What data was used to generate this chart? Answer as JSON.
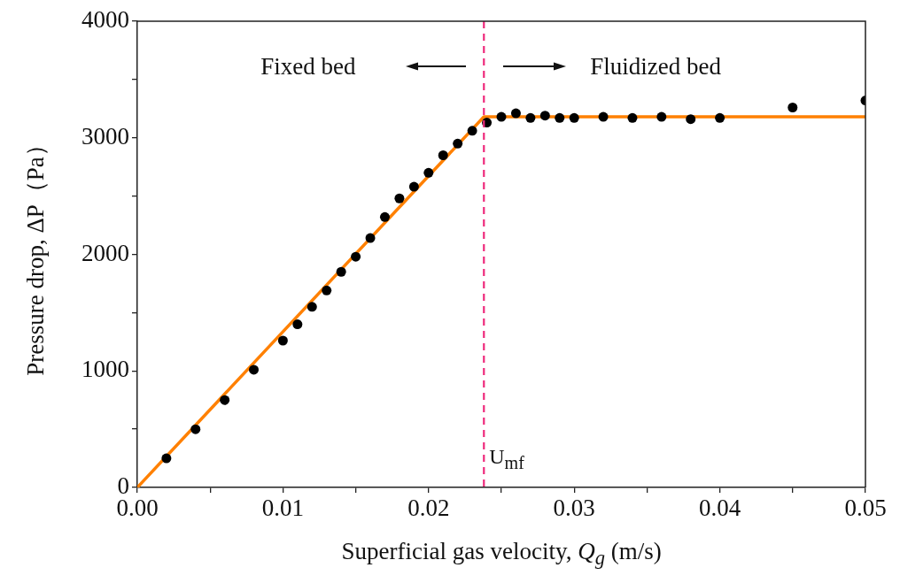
{
  "chart_data": {
    "type": "scatter",
    "xlabel": "Superficial gas velocity, Q$_{g}$ (m/s)",
    "ylabel": "Pressure drop, ΔP（Pa）",
    "xlim": [
      0,
      0.05
    ],
    "ylim": [
      0,
      4000
    ],
    "xticks": [
      {
        "value": 0,
        "label": "0.00"
      },
      {
        "value": 0.005,
        "label": null
      },
      {
        "value": 0.01,
        "label": "0.01"
      },
      {
        "value": 0.015,
        "label": null
      },
      {
        "value": 0.02,
        "label": "0.02"
      },
      {
        "value": 0.025,
        "label": null
      },
      {
        "value": 0.03,
        "label": "0.03"
      },
      {
        "value": 0.035,
        "label": null
      },
      {
        "value": 0.04,
        "label": "0.04"
      },
      {
        "value": 0.045,
        "label": null
      },
      {
        "value": 0.05,
        "label": "0.05"
      }
    ],
    "yticks": [
      0,
      {
        "value": 500,
        "label": null
      },
      1000,
      {
        "value": 1500,
        "label": null
      },
      2000,
      {
        "value": 2500,
        "label": null
      },
      3000,
      {
        "value": 3500,
        "label": null
      },
      4000
    ],
    "grid": false,
    "legend": false,
    "series": [
      {
        "type": "scatter",
        "color": "#000000",
        "marker": "circle",
        "x": [
          0.002,
          0.004,
          0.006,
          0.008,
          0.01,
          0.011,
          0.012,
          0.013,
          0.014,
          0.015,
          0.016,
          0.017,
          0.018,
          0.019,
          0.02,
          0.021,
          0.022,
          0.023,
          0.024,
          0.025,
          0.026,
          0.027,
          0.028,
          0.029,
          0.03,
          0.032,
          0.034,
          0.036,
          0.038,
          0.04,
          0.045,
          0.05
        ],
        "values": [
          250,
          500,
          750,
          1010,
          1260,
          1400,
          1550,
          1690,
          1850,
          1980,
          2140,
          2320,
          2480,
          2580,
          2700,
          2850,
          2950,
          3060,
          3130,
          3180,
          3210,
          3170,
          3190,
          3170,
          3170,
          3180,
          3170,
          3180,
          3160,
          3170,
          3260,
          3320
        ]
      },
      {
        "type": "line",
        "color": "#ff8000",
        "marker": "none",
        "line_style": "solid",
        "x": [
          0,
          0.0238,
          0.05
        ],
        "values": [
          0,
          3180,
          3180
        ]
      }
    ],
    "ref_lines": [
      {
        "axis": "x",
        "value": 0.0238,
        "label": "U$_{mf}$",
        "color": "#ee2a7b",
        "line_style": "dashed"
      }
    ],
    "annotations": [
      "Fixed bed",
      "Fluidized bed"
    ]
  }
}
